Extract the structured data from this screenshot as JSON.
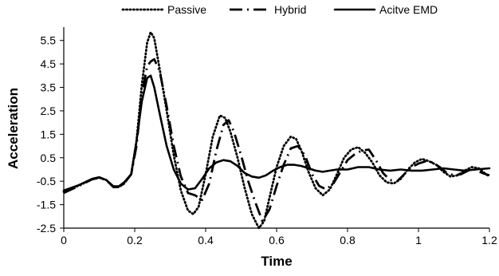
{
  "chart_data": {
    "type": "line",
    "title": "",
    "xlabel": "Time",
    "ylabel": "Acceleration",
    "xlim": [
      0,
      1.2
    ],
    "ylim": [
      -2.5,
      6.0
    ],
    "x_ticks": [
      "0",
      "0.2",
      "0.4",
      "0.6",
      "0.8",
      "1",
      "1.2"
    ],
    "x_tick_values": [
      0,
      0.2,
      0.4,
      0.6,
      0.8,
      1.0,
      1.2
    ],
    "y_ticks": [
      "-2.5",
      "-1.5",
      "-0.5",
      "0.5",
      "1.5",
      "2.5",
      "3.5",
      "4.5",
      "5.5"
    ],
    "y_tick_values": [
      -2.5,
      -1.5,
      -0.5,
      0.5,
      1.5,
      2.5,
      3.5,
      4.5,
      5.5
    ],
    "grid": false,
    "legend_position": "top",
    "line_color": "#000000",
    "series": [
      {
        "name": "Passive",
        "style": "dotted",
        "points": [
          [
            0.0,
            -0.95
          ],
          [
            0.04,
            -0.7
          ],
          [
            0.08,
            -0.42
          ],
          [
            0.1,
            -0.35
          ],
          [
            0.12,
            -0.45
          ],
          [
            0.14,
            -0.75
          ],
          [
            0.155,
            -0.75
          ],
          [
            0.17,
            -0.6
          ],
          [
            0.19,
            -0.2
          ],
          [
            0.205,
            1.2
          ],
          [
            0.22,
            3.6
          ],
          [
            0.235,
            5.4
          ],
          [
            0.245,
            5.85
          ],
          [
            0.255,
            5.6
          ],
          [
            0.27,
            4.3
          ],
          [
            0.29,
            2.5
          ],
          [
            0.31,
            0.6
          ],
          [
            0.33,
            -0.9
          ],
          [
            0.35,
            -1.75
          ],
          [
            0.365,
            -1.9
          ],
          [
            0.38,
            -1.6
          ],
          [
            0.4,
            -0.2
          ],
          [
            0.42,
            1.4
          ],
          [
            0.44,
            2.3
          ],
          [
            0.455,
            2.2
          ],
          [
            0.47,
            1.6
          ],
          [
            0.49,
            0.5
          ],
          [
            0.51,
            -0.8
          ],
          [
            0.53,
            -1.9
          ],
          [
            0.55,
            -2.5
          ],
          [
            0.565,
            -2.2
          ],
          [
            0.58,
            -1.2
          ],
          [
            0.6,
            0.1
          ],
          [
            0.62,
            1.0
          ],
          [
            0.64,
            1.4
          ],
          [
            0.655,
            1.3
          ],
          [
            0.67,
            0.8
          ],
          [
            0.69,
            -0.1
          ],
          [
            0.71,
            -0.8
          ],
          [
            0.73,
            -1.1
          ],
          [
            0.75,
            -0.85
          ],
          [
            0.77,
            -0.2
          ],
          [
            0.79,
            0.5
          ],
          [
            0.81,
            0.85
          ],
          [
            0.83,
            0.95
          ],
          [
            0.85,
            0.7
          ],
          [
            0.87,
            0.3
          ],
          [
            0.89,
            -0.25
          ],
          [
            0.91,
            -0.55
          ],
          [
            0.93,
            -0.6
          ],
          [
            0.95,
            -0.4
          ],
          [
            0.97,
            0.0
          ],
          [
            0.99,
            0.3
          ],
          [
            1.01,
            0.45
          ],
          [
            1.03,
            0.35
          ],
          [
            1.05,
            0.2
          ],
          [
            1.07,
            -0.1
          ],
          [
            1.09,
            -0.3
          ],
          [
            1.11,
            -0.25
          ],
          [
            1.13,
            -0.05
          ],
          [
            1.15,
            0.1
          ],
          [
            1.17,
            0.05
          ],
          [
            1.19,
            -0.2
          ],
          [
            1.2,
            -0.3
          ]
        ]
      },
      {
        "name": "Hybrid",
        "style": "dashdot",
        "points": [
          [
            0.0,
            -1.0
          ],
          [
            0.04,
            -0.72
          ],
          [
            0.08,
            -0.42
          ],
          [
            0.1,
            -0.35
          ],
          [
            0.12,
            -0.45
          ],
          [
            0.14,
            -0.75
          ],
          [
            0.155,
            -0.75
          ],
          [
            0.17,
            -0.6
          ],
          [
            0.19,
            -0.2
          ],
          [
            0.205,
            1.0
          ],
          [
            0.22,
            3.2
          ],
          [
            0.235,
            4.4
          ],
          [
            0.245,
            4.6
          ],
          [
            0.255,
            4.7
          ],
          [
            0.27,
            4.2
          ],
          [
            0.29,
            2.7
          ],
          [
            0.31,
            1.0
          ],
          [
            0.33,
            -0.3
          ],
          [
            0.35,
            -1.0
          ],
          [
            0.37,
            -1.1
          ],
          [
            0.39,
            -1.3
          ],
          [
            0.41,
            -0.6
          ],
          [
            0.43,
            0.8
          ],
          [
            0.45,
            1.9
          ],
          [
            0.465,
            2.1
          ],
          [
            0.48,
            1.6
          ],
          [
            0.5,
            0.6
          ],
          [
            0.52,
            -0.5
          ],
          [
            0.54,
            -1.4
          ],
          [
            0.56,
            -2.2
          ],
          [
            0.58,
            -1.7
          ],
          [
            0.6,
            -0.7
          ],
          [
            0.62,
            0.2
          ],
          [
            0.64,
            0.9
          ],
          [
            0.66,
            1.0
          ],
          [
            0.68,
            0.6
          ],
          [
            0.7,
            -0.2
          ],
          [
            0.72,
            -0.7
          ],
          [
            0.74,
            -0.85
          ],
          [
            0.76,
            -0.6
          ],
          [
            0.78,
            -0.1
          ],
          [
            0.8,
            0.4
          ],
          [
            0.82,
            0.65
          ],
          [
            0.84,
            0.8
          ],
          [
            0.86,
            0.85
          ],
          [
            0.88,
            0.4
          ],
          [
            0.9,
            -0.15
          ],
          [
            0.92,
            -0.45
          ],
          [
            0.94,
            -0.5
          ],
          [
            0.96,
            -0.2
          ],
          [
            0.98,
            0.1
          ],
          [
            1.0,
            0.25
          ],
          [
            1.02,
            0.35
          ],
          [
            1.04,
            0.3
          ],
          [
            1.06,
            0.1
          ],
          [
            1.08,
            -0.15
          ],
          [
            1.1,
            -0.25
          ],
          [
            1.12,
            -0.2
          ],
          [
            1.14,
            -0.05
          ],
          [
            1.16,
            0.0
          ],
          [
            1.18,
            -0.15
          ],
          [
            1.2,
            -0.25
          ]
        ]
      },
      {
        "name": "Acitve EMD",
        "style": "solid",
        "points": [
          [
            0.0,
            -0.9
          ],
          [
            0.04,
            -0.68
          ],
          [
            0.08,
            -0.4
          ],
          [
            0.1,
            -0.33
          ],
          [
            0.12,
            -0.45
          ],
          [
            0.14,
            -0.72
          ],
          [
            0.155,
            -0.72
          ],
          [
            0.17,
            -0.55
          ],
          [
            0.19,
            -0.2
          ],
          [
            0.205,
            1.2
          ],
          [
            0.22,
            2.9
          ],
          [
            0.235,
            3.9
          ],
          [
            0.245,
            4.0
          ],
          [
            0.255,
            3.5
          ],
          [
            0.27,
            2.4
          ],
          [
            0.29,
            1.0
          ],
          [
            0.31,
            0.0
          ],
          [
            0.33,
            -0.6
          ],
          [
            0.35,
            -0.85
          ],
          [
            0.37,
            -0.8
          ],
          [
            0.39,
            -0.4
          ],
          [
            0.41,
            0.05
          ],
          [
            0.43,
            0.3
          ],
          [
            0.45,
            0.4
          ],
          [
            0.47,
            0.35
          ],
          [
            0.49,
            0.15
          ],
          [
            0.51,
            -0.15
          ],
          [
            0.53,
            -0.3
          ],
          [
            0.55,
            -0.35
          ],
          [
            0.57,
            -0.25
          ],
          [
            0.59,
            -0.05
          ],
          [
            0.61,
            0.1
          ],
          [
            0.63,
            0.2
          ],
          [
            0.65,
            0.2
          ],
          [
            0.67,
            0.15
          ],
          [
            0.69,
            0.05
          ],
          [
            0.71,
            -0.05
          ],
          [
            0.73,
            -0.1
          ],
          [
            0.75,
            -0.05
          ],
          [
            0.77,
            0.0
          ],
          [
            0.8,
            0.0
          ],
          [
            0.83,
            0.1
          ],
          [
            0.86,
            0.1
          ],
          [
            0.89,
            0.0
          ],
          [
            0.92,
            -0.05
          ],
          [
            0.95,
            0.0
          ],
          [
            0.98,
            -0.05
          ],
          [
            1.01,
            -0.05
          ],
          [
            1.04,
            0.0
          ],
          [
            1.07,
            0.05
          ],
          [
            1.1,
            0.0
          ],
          [
            1.13,
            -0.05
          ],
          [
            1.16,
            0.0
          ],
          [
            1.2,
            0.05
          ]
        ]
      }
    ]
  }
}
